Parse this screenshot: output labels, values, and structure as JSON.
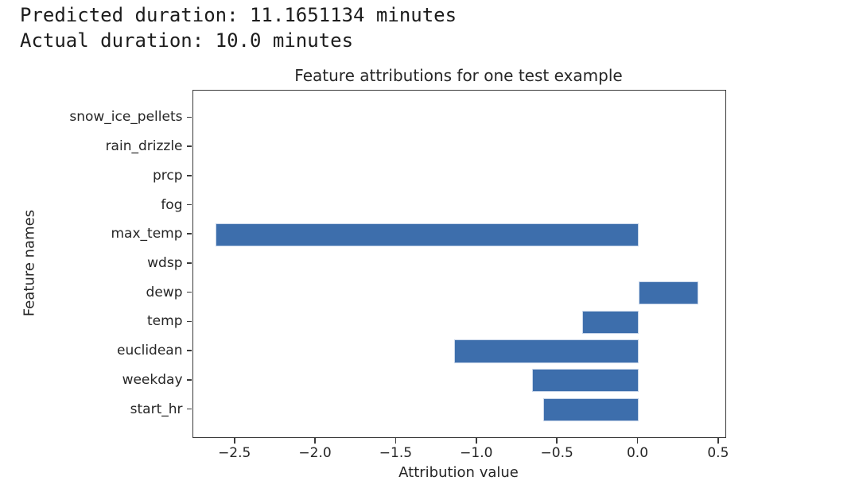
{
  "header": {
    "line1": "Predicted duration: 11.1651134 minutes",
    "line2": "Actual duration: 10.0 minutes"
  },
  "chart_data": {
    "type": "bar",
    "orientation": "horizontal",
    "title": "Feature attributions for one test example",
    "xlabel": "Attribution value",
    "ylabel": "Feature names",
    "categories_top_to_bottom": [
      "snow_ice_pellets",
      "rain_drizzle",
      "prcp",
      "fog",
      "max_temp",
      "wdsp",
      "dewp",
      "temp",
      "euclidean",
      "weekday",
      "start_hr"
    ],
    "values": [
      0,
      0,
      0,
      0,
      -2.62,
      0,
      0.37,
      -0.35,
      -1.14,
      -0.66,
      -0.59
    ],
    "xlim": [
      -2.76,
      0.54
    ],
    "ylim": [
      -0.94,
      10.94
    ],
    "bar_thickness_units": 0.8,
    "xticks": [
      -2.5,
      -2.0,
      -1.5,
      -1.0,
      -0.5,
      0.0,
      0.5
    ],
    "xtick_labels": [
      "−2.5",
      "−2.0",
      "−1.5",
      "−1.0",
      "−0.5",
      "0.0",
      "0.5"
    ],
    "grid": false,
    "legend": null,
    "bar_color": "#3d6eac",
    "bar_edge_color": "#c8d6ea",
    "spine_color": "#3a3a3a",
    "text_color": "#262626"
  }
}
